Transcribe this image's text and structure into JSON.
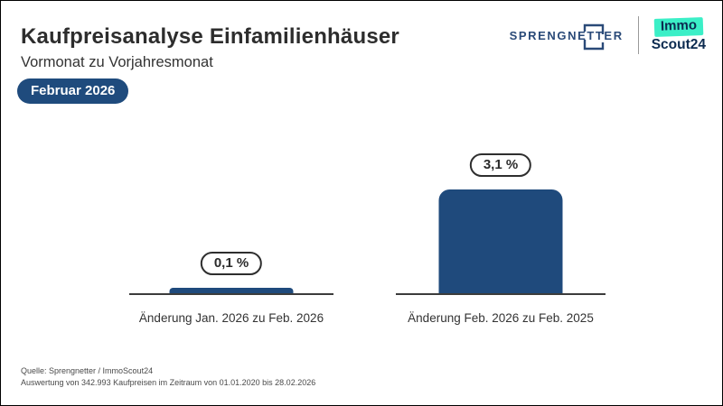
{
  "header": {
    "title": "Kaufpreisanalyse Einfamilienhäuser",
    "subtitle": "Vormonat zu Vorjahresmonat",
    "badge": "Februar 2026"
  },
  "logos": {
    "sprengnetter": "SPRENGNETTER",
    "immoscout_line1": "Immo",
    "immoscout_line2": "Scout24"
  },
  "chart_data": {
    "type": "bar",
    "title": "Kaufpreisanalyse Einfamilienhäuser",
    "subtitle": "Vormonat zu Vorjahresmonat",
    "period": "Februar 2026",
    "categories": [
      "Änderung Jan. 2026 zu Feb. 2026",
      "Änderung Feb. 2026 zu Feb. 2025"
    ],
    "values": [
      0.1,
      3.1
    ],
    "value_labels": [
      "0,1 %",
      "3,1 %"
    ],
    "unit": "%",
    "ylim": [
      0,
      3.1
    ],
    "grid": false,
    "legend": false,
    "bar_color": "#1F4A7C"
  },
  "footer": {
    "line1": "Quelle: Sprengnetter / ImmoScout24",
    "line2": "Auswertung von 342.993 Kaufpreisen im Zeitraum von 01.01.2020 bis 28.02.2026"
  },
  "colors": {
    "accent_navy": "#1F4B7D",
    "bar_navy": "#1F4A7C",
    "immoscout_teal": "#3BEFC7",
    "logo_navy": "#2A4A78",
    "axis": "#3c3c3c",
    "text_dark": "#2d2d2d"
  }
}
